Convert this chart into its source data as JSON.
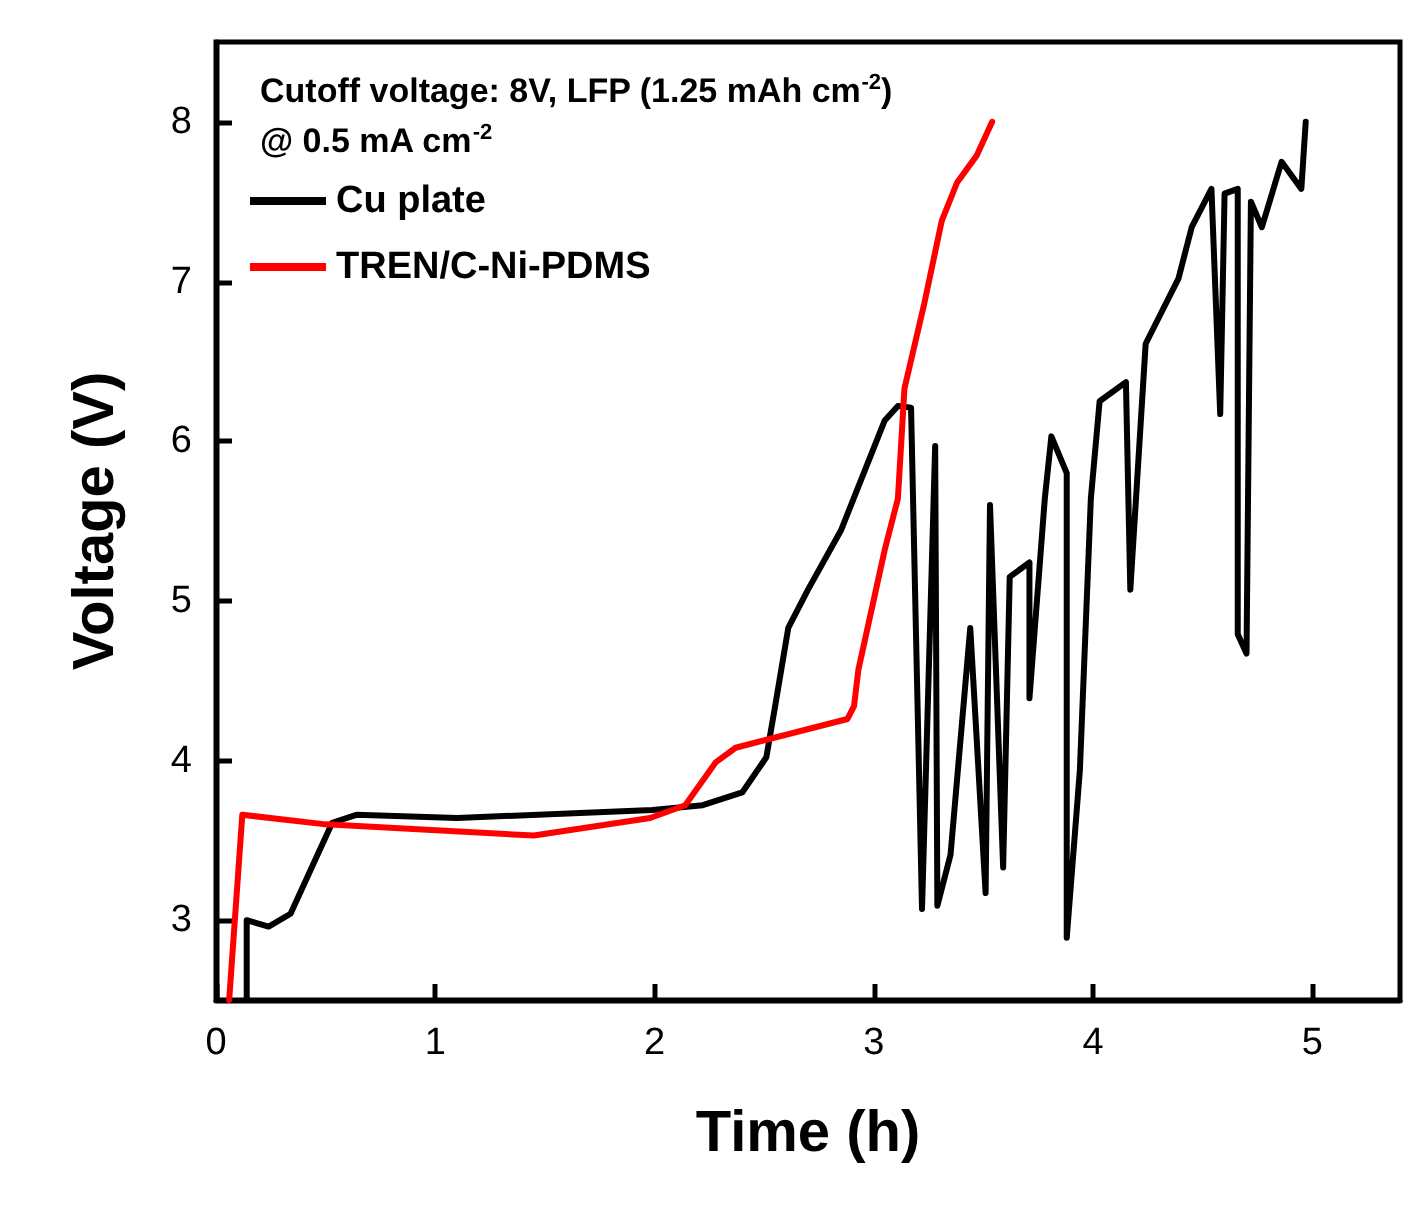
{
  "chart_data": {
    "type": "line",
    "xlabel": "Time (h)",
    "ylabel": "Voltage (V)",
    "annotations": [
      "Cutoff voltage: 8V, LFP (1.25 mAh cm$^{-2}$)",
      "@ 0.5 mA cm$^{-2}$"
    ],
    "xlim": [
      0,
      5.4
    ],
    "xticks": [
      0,
      1,
      2,
      3,
      4,
      5
    ],
    "ylim": [
      2.5,
      8.5
    ],
    "yticks": [
      3,
      4,
      5,
      6,
      7,
      8
    ],
    "grid": false,
    "legend": "top left",
    "marker": "none",
    "line_style": "solid",
    "series": [
      {
        "name": "Cu plate",
        "color": "#000000",
        "x": [
          0.14,
          0.14,
          0.24,
          0.34,
          0.53,
          0.64,
          1.1,
          1.99,
          2.22,
          2.4,
          2.51,
          2.55,
          2.61,
          2.7,
          2.85,
          3.05,
          3.11,
          3.17,
          3.22,
          3.28,
          3.29,
          3.35,
          3.44,
          3.51,
          3.53,
          3.59,
          3.62,
          3.71,
          3.71,
          3.78,
          3.81,
          3.88,
          3.88,
          3.94,
          3.99,
          4.03,
          4.15,
          4.17,
          4.24,
          4.39,
          4.45,
          4.54,
          4.58,
          4.6,
          4.66,
          4.66,
          4.7,
          4.72,
          4.77,
          4.86,
          4.95,
          4.97
        ],
        "values": [
          2.5,
          3.0,
          2.96,
          3.04,
          3.61,
          3.66,
          3.64,
          3.69,
          3.72,
          3.8,
          4.02,
          4.34,
          4.83,
          5.07,
          5.44,
          6.13,
          6.22,
          6.21,
          3.07,
          5.97,
          3.09,
          3.41,
          4.83,
          3.17,
          5.6,
          3.33,
          5.15,
          5.24,
          4.39,
          5.64,
          6.03,
          5.8,
          2.89,
          3.94,
          5.64,
          6.25,
          6.37,
          5.07,
          6.61,
          7.02,
          7.34,
          7.58,
          6.17,
          7.55,
          7.58,
          4.79,
          4.67,
          7.5,
          7.34,
          7.75,
          7.58,
          8.0
        ]
      },
      {
        "name": "TREN/C-Ni-PDMS",
        "color": "#ff0000",
        "x": [
          0.06,
          0.12,
          0.5,
          1.45,
          1.98,
          2.14,
          2.28,
          2.37,
          2.88,
          2.91,
          2.93,
          3.05,
          3.11,
          3.14,
          3.23,
          3.31,
          3.38,
          3.47,
          3.54
        ],
        "values": [
          2.5,
          3.66,
          3.6,
          3.53,
          3.64,
          3.72,
          3.99,
          4.08,
          4.26,
          4.34,
          4.57,
          5.32,
          5.64,
          6.33,
          6.86,
          7.38,
          7.62,
          7.79,
          8.0
        ]
      }
    ]
  }
}
